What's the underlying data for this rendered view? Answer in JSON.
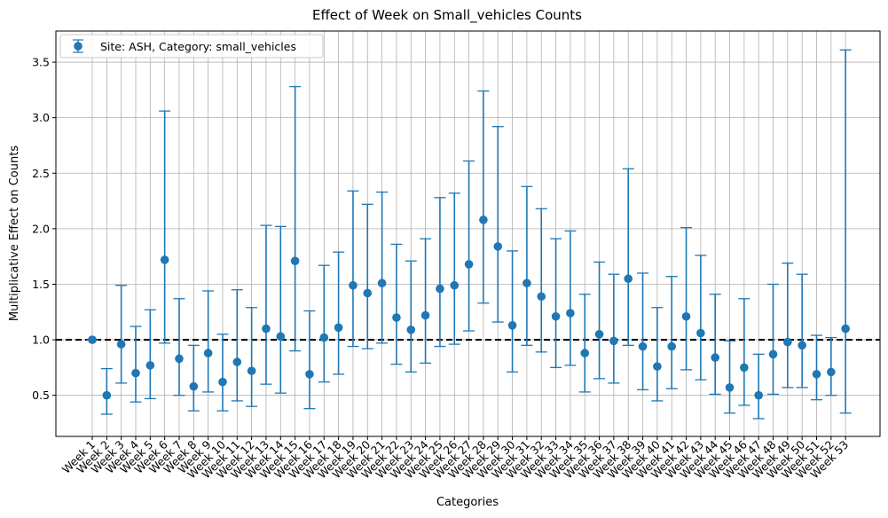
{
  "chart_data": {
    "type": "scatter",
    "title": "Effect of Week on Small_vehicles Counts",
    "xlabel": "Categories",
    "ylabel": "Multiplicative Effect on Counts",
    "ylim": [
      0.13,
      3.78
    ],
    "yticks": [
      0.5,
      1.0,
      1.5,
      2.0,
      2.5,
      3.0,
      3.5
    ],
    "ytick_labels": [
      "0.5",
      "1.0",
      "1.5",
      "2.0",
      "2.5",
      "3.0",
      "3.5"
    ],
    "grid": true,
    "legend_position": "top-left",
    "reference_line": {
      "y": 1.0,
      "style": "dashed",
      "color": "#000000"
    },
    "color": "#1f77b4",
    "categories": [
      "Week 1",
      "Week 2",
      "Week 3",
      "Week 4",
      "Week 5",
      "Week 6",
      "Week 7",
      "Week 8",
      "Week 9",
      "Week 10",
      "Week 11",
      "Week 12",
      "Week 13",
      "Week 14",
      "Week 15",
      "Week 16",
      "Week 17",
      "Week 18",
      "Week 19",
      "Week 20",
      "Week 21",
      "Week 22",
      "Week 23",
      "Week 24",
      "Week 25",
      "Week 26",
      "Week 27",
      "Week 28",
      "Week 29",
      "Week 30",
      "Week 31",
      "Week 32",
      "Week 33",
      "Week 34",
      "Week 35",
      "Week 36",
      "Week 37",
      "Week 38",
      "Week 39",
      "Week 40",
      "Week 41",
      "Week 42",
      "Week 43",
      "Week 44",
      "Week 45",
      "Week 46",
      "Week 47",
      "Week 48",
      "Week 49",
      "Week 50",
      "Week 51",
      "Week 52",
      "Week 53"
    ],
    "series": [
      {
        "name": "Site: ASH, Category: small_vehicles",
        "values": [
          1.0,
          0.5,
          0.96,
          0.7,
          0.77,
          1.72,
          0.83,
          0.58,
          0.88,
          0.62,
          0.8,
          0.72,
          1.1,
          1.03,
          1.71,
          0.69,
          1.02,
          1.11,
          1.49,
          1.42,
          1.51,
          1.2,
          1.09,
          1.22,
          1.46,
          1.49,
          1.68,
          2.08,
          1.84,
          1.13,
          1.51,
          1.39,
          1.21,
          1.24,
          0.88,
          1.05,
          0.99,
          1.55,
          0.94,
          0.76,
          0.94,
          1.21,
          1.06,
          0.84,
          0.57,
          0.75,
          0.5,
          0.87,
          0.98,
          0.95,
          0.69,
          0.71,
          1.1
        ],
        "lower": [
          1.0,
          0.33,
          0.61,
          0.44,
          0.47,
          0.97,
          0.5,
          0.36,
          0.53,
          0.36,
          0.45,
          0.4,
          0.6,
          0.52,
          0.9,
          0.38,
          0.62,
          0.69,
          0.94,
          0.92,
          0.97,
          0.78,
          0.71,
          0.79,
          0.94,
          0.96,
          1.08,
          1.33,
          1.16,
          0.71,
          0.95,
          0.89,
          0.75,
          0.77,
          0.53,
          0.65,
          0.61,
          0.95,
          0.55,
          0.45,
          0.56,
          0.73,
          0.64,
          0.51,
          0.34,
          0.41,
          0.29,
          0.51,
          0.57,
          0.57,
          0.46,
          0.5,
          0.34
        ],
        "upper": [
          1.0,
          0.74,
          1.49,
          1.12,
          1.27,
          3.06,
          1.37,
          0.95,
          1.44,
          1.05,
          1.45,
          1.29,
          2.03,
          2.02,
          3.28,
          1.26,
          1.67,
          1.79,
          2.34,
          2.22,
          2.33,
          1.86,
          1.71,
          1.91,
          2.28,
          2.32,
          2.61,
          3.24,
          2.92,
          1.8,
          2.38,
          2.18,
          1.91,
          1.98,
          1.41,
          1.7,
          1.59,
          2.54,
          1.6,
          1.29,
          1.57,
          2.01,
          1.76,
          1.41,
          0.99,
          1.37,
          0.87,
          1.5,
          1.69,
          1.59,
          1.04,
          1.02,
          3.61
        ]
      }
    ]
  }
}
